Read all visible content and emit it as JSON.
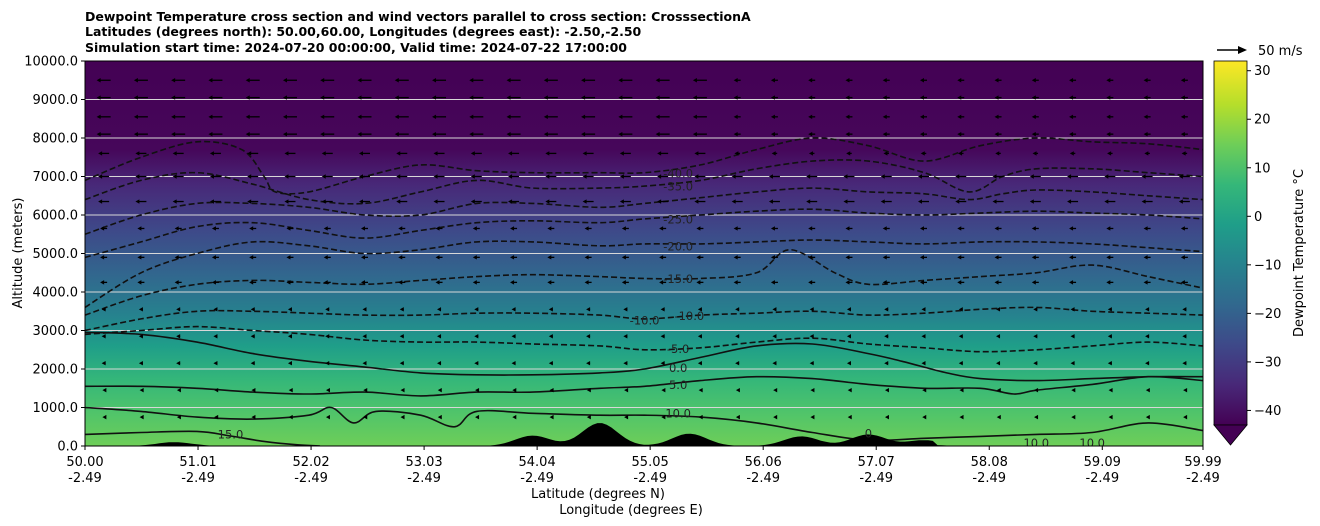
{
  "chart_data": {
    "type": "contour",
    "title_lines": [
      "Dewpoint Temperature cross section and wind vectors parallel to cross section: CrosssectionA",
      "Latitudes (degrees north): 50.00,60.00, Longitudes (degrees east): -2.50,-2.50",
      "Simulation start time: 2024-07-20 00:00:00, Valid time: 2024-07-22 17:00:00"
    ],
    "ylabel": "Altitude (meters)",
    "xlabel_lat": "Latitude (degrees N)",
    "xlabel_lon": "Longitude (degrees E)",
    "ylim": [
      0,
      10000
    ],
    "y_ticks": [
      "0.0",
      "1000.0",
      "2000.0",
      "3000.0",
      "4000.0",
      "5000.0",
      "6000.0",
      "7000.0",
      "8000.0",
      "9000.0",
      "10000.0"
    ],
    "xlim": [
      50.0,
      59.99
    ],
    "x_ticks": [
      {
        "lat": "50.00",
        "lon": "-2.49"
      },
      {
        "lat": "51.01",
        "lon": "-2.49"
      },
      {
        "lat": "52.02",
        "lon": "-2.49"
      },
      {
        "lat": "53.03",
        "lon": "-2.49"
      },
      {
        "lat": "54.04",
        "lon": "-2.49"
      },
      {
        "lat": "55.05",
        "lon": "-2.49"
      },
      {
        "lat": "56.06",
        "lon": "-2.49"
      },
      {
        "lat": "57.07",
        "lon": "-2.49"
      },
      {
        "lat": "58.08",
        "lon": "-2.49"
      },
      {
        "lat": "59.09",
        "lon": "-2.49"
      },
      {
        "lat": "59.99",
        "lon": "-2.49"
      }
    ],
    "grid": "horizontal lines, white",
    "colorbar": {
      "label": "Dewpoint Temperature $^\\circ$C",
      "label_text": "Dewpoint Temperature",
      "label_unit": "°C",
      "range": [
        -43,
        32
      ],
      "ticks": [
        "−40",
        "−30",
        "−20",
        "−10",
        "0",
        "10",
        "20",
        "30"
      ],
      "extend": "min",
      "colormap": "viridis",
      "colors": [
        "#440154",
        "#482878",
        "#3e4989",
        "#31688e",
        "#26828e",
        "#1f9e89",
        "#35b779",
        "#6ece58",
        "#b5de2b",
        "#fde725"
      ]
    },
    "wind_key": {
      "label": "50 m/s"
    },
    "contour_labels": [
      {
        "text": "-40.0",
        "lat": 55.3,
        "alt": 7080
      },
      {
        "text": "-35.0",
        "lat": 55.3,
        "alt": 6740
      },
      {
        "text": "-25.0",
        "lat": 55.3,
        "alt": 5880
      },
      {
        "text": "-20.0",
        "lat": 55.3,
        "alt": 5180
      },
      {
        "text": "-15.0",
        "lat": 55.3,
        "alt": 4340
      },
      {
        "text": "-10.0",
        "lat": 55.0,
        "alt": 3260
      },
      {
        "text": "-10.0",
        "lat": 55.4,
        "alt": 3380
      },
      {
        "text": "-5.0",
        "lat": 55.3,
        "alt": 2520
      },
      {
        "text": "0.0",
        "lat": 55.3,
        "alt": 2020
      },
      {
        "text": "5.0",
        "lat": 55.3,
        "alt": 1580
      },
      {
        "text": "10.0",
        "lat": 55.3,
        "alt": 850
      },
      {
        "text": "15.0",
        "lat": 51.3,
        "alt": 300
      },
      {
        "text": "10.0",
        "lat": 58.5,
        "alt": 80
      },
      {
        "text": "10.0",
        "lat": 59.0,
        "alt": 80
      },
      {
        "text": "0",
        "lat": 57.0,
        "alt": 330
      }
    ],
    "contours": [
      {
        "level": -40,
        "dashed": true,
        "lats": [
          50.0,
          50.5,
          51.0,
          51.4,
          51.6,
          51.7,
          52.0,
          52.5,
          53.0,
          53.5,
          54.0,
          54.6,
          55.0,
          55.5,
          56.0,
          56.5,
          57.0,
          57.5,
          58.0,
          58.5,
          59.0,
          59.5,
          59.99
        ],
        "alts": [
          6900,
          7500,
          7900,
          7700,
          7000,
          6600,
          6600,
          7000,
          7300,
          7150,
          7100,
          7100,
          7100,
          7300,
          7700,
          8000,
          7800,
          7400,
          7800,
          8000,
          7900,
          7850,
          7700
        ]
      },
      {
        "level": -35,
        "dashed": true,
        "lats": [
          50.0,
          50.5,
          51.0,
          51.5,
          52.0,
          52.5,
          53.0,
          53.5,
          54.0,
          54.6,
          55.0,
          55.5,
          56.0,
          56.5,
          57.0,
          57.5,
          57.9,
          58.2,
          58.5,
          59.0,
          59.5,
          59.99
        ],
        "alts": [
          6400,
          6900,
          7100,
          6800,
          6400,
          6300,
          6600,
          6900,
          6700,
          6700,
          6750,
          6900,
          7200,
          7400,
          7400,
          7100,
          6600,
          7000,
          7200,
          7200,
          7100,
          7000
        ]
      },
      {
        "level": -30,
        "dashed": true,
        "lats": [
          50.0,
          50.5,
          51.0,
          51.5,
          52.0,
          52.5,
          53.0,
          53.5,
          54.0,
          54.6,
          55.0,
          55.5,
          56.0,
          56.5,
          57.0,
          57.5,
          57.9,
          58.2,
          58.5,
          59.0,
          59.5,
          59.99
        ],
        "alts": [
          5500,
          6000,
          6300,
          6300,
          6200,
          6000,
          6000,
          6300,
          6300,
          6200,
          6300,
          6450,
          6600,
          6700,
          6600,
          6550,
          6400,
          6550,
          6650,
          6600,
          6500,
          6400
        ]
      },
      {
        "level": -25,
        "dashed": true,
        "lats": [
          50.0,
          50.5,
          51.0,
          51.5,
          52.0,
          52.5,
          53.0,
          53.5,
          54.0,
          54.6,
          55.0,
          55.5,
          56.0,
          56.5,
          57.0,
          57.5,
          58.0,
          58.5,
          59.0,
          59.5,
          59.99
        ],
        "alts": [
          4900,
          5300,
          5700,
          5800,
          5600,
          5400,
          5600,
          5800,
          5850,
          5800,
          5900,
          6000,
          6100,
          6150,
          6050,
          6000,
          6050,
          6100,
          6050,
          6000,
          5900
        ]
      },
      {
        "level": -20,
        "dashed": true,
        "lats": [
          50.0,
          50.5,
          51.0,
          51.5,
          52.0,
          52.5,
          53.0,
          53.5,
          54.0,
          54.6,
          55.0,
          55.5,
          56.0,
          56.5,
          57.0,
          57.5,
          58.0,
          58.5,
          59.0,
          59.5,
          59.99
        ],
        "alts": [
          3600,
          4500,
          5000,
          5300,
          5200,
          5000,
          5100,
          5300,
          5300,
          5200,
          5250,
          5250,
          5300,
          5350,
          5300,
          5250,
          5300,
          5300,
          5250,
          5150,
          5050
        ]
      },
      {
        "level": -15,
        "dashed": true,
        "lats": [
          50.0,
          50.5,
          51.0,
          51.5,
          52.0,
          52.5,
          53.0,
          53.5,
          54.0,
          54.6,
          55.0,
          55.5,
          56.0,
          56.3,
          56.7,
          57.0,
          57.5,
          58.0,
          58.5,
          59.0,
          59.5,
          59.99
        ],
        "alts": [
          3400,
          3900,
          4200,
          4300,
          4250,
          4200,
          4300,
          4400,
          4450,
          4400,
          4350,
          4350,
          4500,
          5100,
          4500,
          4200,
          4300,
          4400,
          4500,
          4700,
          4400,
          4100
        ]
      },
      {
        "level": -10,
        "dashed": true,
        "lats": [
          50.0,
          50.5,
          51.0,
          51.5,
          52.0,
          52.5,
          53.0,
          53.5,
          54.0,
          54.6,
          55.0,
          55.5,
          56.0,
          56.5,
          57.0,
          57.5,
          58.0,
          58.5,
          59.0,
          59.5,
          59.99
        ],
        "alts": [
          3000,
          3300,
          3500,
          3500,
          3450,
          3400,
          3400,
          3450,
          3450,
          3400,
          3300,
          3400,
          3450,
          3500,
          3400,
          3450,
          3550,
          3600,
          3500,
          3450,
          3400
        ]
      },
      {
        "level": -5,
        "dashed": true,
        "lats": [
          50.0,
          50.5,
          51.0,
          51.5,
          52.0,
          52.5,
          53.0,
          53.5,
          54.0,
          54.6,
          55.0,
          55.5,
          56.0,
          56.5,
          57.0,
          57.5,
          58.0,
          58.5,
          59.0,
          59.5,
          59.99
        ],
        "alts": [
          2900,
          3000,
          3100,
          3000,
          2900,
          2750,
          2700,
          2700,
          2650,
          2600,
          2500,
          2550,
          2700,
          2800,
          2650,
          2550,
          2450,
          2500,
          2600,
          2700,
          2600
        ]
      },
      {
        "level": 0,
        "dashed": false,
        "lats": [
          50.0,
          50.5,
          51.0,
          51.5,
          52.0,
          52.5,
          53.0,
          53.5,
          54.0,
          54.6,
          55.0,
          55.5,
          56.0,
          56.5,
          57.0,
          57.3,
          57.7,
          58.0,
          58.5,
          59.0,
          59.5,
          59.99
        ],
        "alts": [
          2950,
          2900,
          2700,
          2400,
          2200,
          2050,
          1900,
          1850,
          1850,
          1900,
          2000,
          2300,
          2600,
          2650,
          2400,
          2200,
          1900,
          1750,
          1700,
          1750,
          1800,
          1800
        ]
      },
      {
        "level": 5,
        "dashed": false,
        "lats": [
          50.0,
          50.5,
          51.0,
          51.5,
          52.0,
          52.5,
          53.0,
          53.5,
          54.0,
          54.6,
          55.0,
          55.5,
          56.0,
          56.5,
          57.0,
          57.5,
          58.0,
          58.3,
          58.5,
          59.0,
          59.5,
          59.99
        ],
        "alts": [
          1550,
          1550,
          1500,
          1400,
          1350,
          1400,
          1300,
          1400,
          1400,
          1500,
          1550,
          1700,
          1800,
          1750,
          1600,
          1500,
          1500,
          1350,
          1450,
          1600,
          1800,
          1700
        ]
      },
      {
        "level": 10,
        "dashed": false,
        "lats": [
          50.0,
          50.5,
          51.0,
          51.5,
          52.0,
          52.2,
          52.4,
          52.6,
          53.0,
          53.3,
          53.5,
          54.0,
          54.6,
          55.0,
          55.5,
          56.0,
          56.5,
          57.0,
          57.5,
          58.0,
          58.5,
          59.0,
          59.5,
          59.99
        ],
        "alts": [
          1000,
          900,
          750,
          700,
          800,
          1000,
          600,
          900,
          800,
          500,
          900,
          850,
          800,
          800,
          750,
          600,
          350,
          150,
          200,
          250,
          300,
          350,
          600,
          400
        ]
      },
      {
        "level": 15,
        "dashed": false,
        "lats": [
          50.0,
          50.5,
          51.0,
          51.3,
          51.6,
          51.9,
          52.1
        ],
        "alts": [
          300,
          350,
          380,
          260,
          120,
          30,
          0
        ]
      }
    ],
    "wind_rows": [
      750,
      1450,
      2150,
      2850,
      3550,
      4250,
      4900,
      5650,
      6350,
      7000,
      7600,
      8100,
      8550,
      9050,
      9500
    ],
    "wind_columns": 30,
    "terrain_peaks": [
      {
        "lat": 50.8,
        "height": 100
      },
      {
        "lat": 54.0,
        "height": 270
      },
      {
        "lat": 54.6,
        "height": 600
      },
      {
        "lat": 55.4,
        "height": 320
      },
      {
        "lat": 56.4,
        "height": 250
      },
      {
        "lat": 57.0,
        "height": 300
      },
      {
        "lat": 57.5,
        "height": 150
      }
    ]
  }
}
